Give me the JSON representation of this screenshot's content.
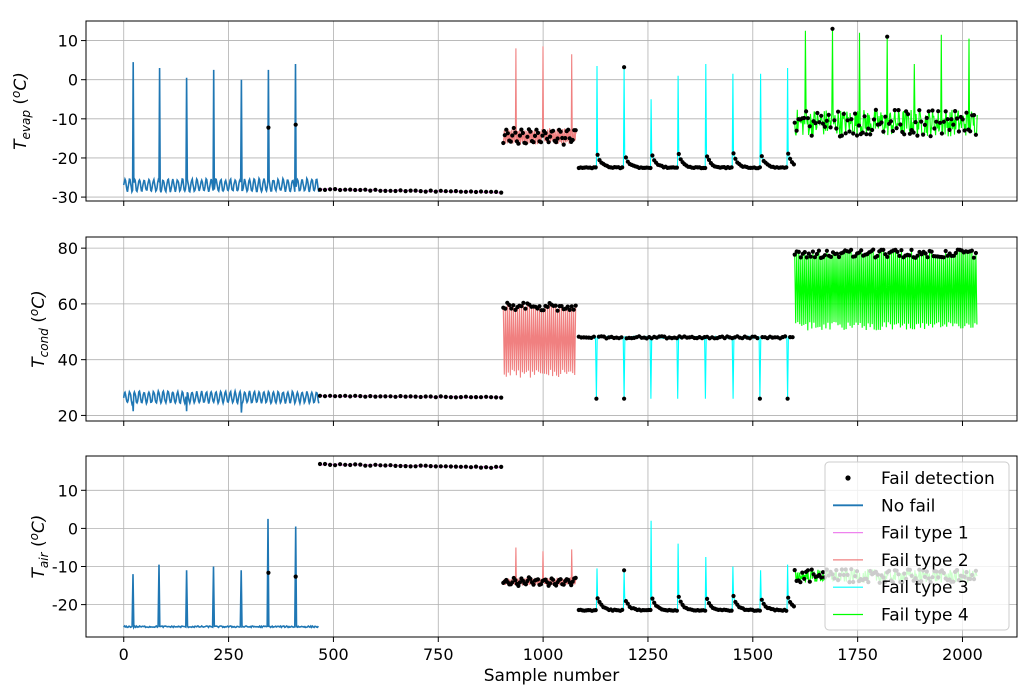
{
  "chart_data": [
    {
      "type": "line",
      "ylabel_main": "T",
      "ylabel_sub": "evap",
      "ylabel_unit_pre": " (",
      "ylabel_unit_sup": "o",
      "ylabel_unit_post": "C)",
      "xlim": [
        -90,
        2130
      ],
      "ylim": [
        -31,
        15
      ],
      "xticks": [
        0,
        250,
        500,
        750,
        1000,
        1250,
        1500,
        1750,
        2000
      ],
      "yticks": [
        -30,
        -20,
        -10,
        0,
        10
      ],
      "grid": true,
      "segments": [
        {
          "series": "No fail",
          "range": [
            0,
            465
          ],
          "pattern": "oscillate",
          "base": -27,
          "amp": 1.5,
          "spikes": [
            {
              "x": 22,
              "y": 4.5
            },
            {
              "x": 85,
              "y": 3
            },
            {
              "x": 150,
              "y": 0.5
            },
            {
              "x": 215,
              "y": 2.5
            },
            {
              "x": 280,
              "y": 0
            },
            {
              "x": 345,
              "y": 2.5
            },
            {
              "x": 410,
              "y": 4
            }
          ]
        },
        {
          "series": "Fail type 1",
          "range": [
            468,
            905
          ],
          "pattern": "flat",
          "start": -28,
          "end": -28.8
        },
        {
          "series": "Fail type 2",
          "range": [
            905,
            1080
          ],
          "pattern": "dense",
          "base": -14.5,
          "amp": 1.8,
          "spikes": [
            {
              "x": 935,
              "y": 8
            },
            {
              "x": 1000,
              "y": 8.5
            },
            {
              "x": 1068,
              "y": 6.5
            }
          ]
        },
        {
          "series": "Fail type 3",
          "range": [
            1085,
            1600
          ],
          "pattern": "decay",
          "base": -22.5,
          "period": 66,
          "spikes": [
            {
              "x": 1128,
              "y": 3.5
            },
            {
              "x": 1193,
              "y": 3.2
            },
            {
              "x": 1258,
              "y": -5
            },
            {
              "x": 1322,
              "y": 1
            },
            {
              "x": 1388,
              "y": 4
            },
            {
              "x": 1453,
              "y": 1.5
            },
            {
              "x": 1518,
              "y": 1.5
            },
            {
              "x": 1583,
              "y": 3
            }
          ]
        },
        {
          "series": "Fail type 4",
          "range": [
            1600,
            2035
          ],
          "pattern": "noisy",
          "base": -11,
          "amp": 3.5,
          "spikes": [
            {
              "x": 1625,
              "y": 12.5
            },
            {
              "x": 1690,
              "y": 13
            },
            {
              "x": 1755,
              "y": 12
            },
            {
              "x": 1820,
              "y": 11
            },
            {
              "x": 1885,
              "y": 4
            },
            {
              "x": 1950,
              "y": 11.5
            },
            {
              "x": 2015,
              "y": 10.5
            }
          ]
        }
      ]
    },
    {
      "type": "line",
      "ylabel_main": "T",
      "ylabel_sub": "cond",
      "ylabel_unit_pre": " (",
      "ylabel_unit_sup": "o",
      "ylabel_unit_post": "C)",
      "xlim": [
        -90,
        2130
      ],
      "ylim": [
        18,
        84
      ],
      "xticks": [
        0,
        250,
        500,
        750,
        1000,
        1250,
        1500,
        1750,
        2000
      ],
      "yticks": [
        20,
        40,
        60,
        80
      ],
      "grid": true,
      "segments": [
        {
          "series": "No fail",
          "range": [
            0,
            465
          ],
          "pattern": "oscillate",
          "base": 26.5,
          "amp": 2,
          "dips": [
            {
              "x": 22,
              "y": 21.5
            },
            {
              "x": 150,
              "y": 21.5
            },
            {
              "x": 280,
              "y": 21
            }
          ]
        },
        {
          "series": "Fail type 1",
          "range": [
            468,
            905
          ],
          "pattern": "flat",
          "start": 27,
          "end": 26.5
        },
        {
          "series": "Fail type 2",
          "range": [
            905,
            1080
          ],
          "pattern": "square",
          "low": 35,
          "high": 59
        },
        {
          "series": "Fail type 3",
          "range": [
            1085,
            1600
          ],
          "pattern": "dipline",
          "base": 48,
          "period": 66,
          "dips": [
            {
              "x": 1128,
              "y": 26
            },
            {
              "x": 1193,
              "y": 26
            },
            {
              "x": 1258,
              "y": 26
            },
            {
              "x": 1322,
              "y": 26
            },
            {
              "x": 1388,
              "y": 26
            },
            {
              "x": 1453,
              "y": 26
            },
            {
              "x": 1518,
              "y": 26
            },
            {
              "x": 1583,
              "y": 26
            }
          ]
        },
        {
          "series": "Fail type 4",
          "range": [
            1600,
            2035
          ],
          "pattern": "square",
          "low": 52,
          "high": 78
        }
      ]
    },
    {
      "type": "line",
      "ylabel_main": "T",
      "ylabel_sub": "air",
      "ylabel_unit_pre": " (",
      "ylabel_unit_sup": "o",
      "ylabel_unit_post": "C)",
      "xlabel": "Sample number",
      "xlim": [
        -90,
        2130
      ],
      "ylim": [
        -28.5,
        19
      ],
      "xticks": [
        0,
        250,
        500,
        750,
        1000,
        1250,
        1500,
        1750,
        2000
      ],
      "yticks": [
        -20,
        -10,
        0,
        10
      ],
      "grid": true,
      "segments": [
        {
          "series": "No fail",
          "range": [
            0,
            465
          ],
          "pattern": "flat-noise",
          "base": -25.8,
          "amp": 0.4,
          "spikes": [
            {
              "x": 22,
              "y": -12
            },
            {
              "x": 85,
              "y": -9.5
            },
            {
              "x": 150,
              "y": -11
            },
            {
              "x": 215,
              "y": -10
            },
            {
              "x": 280,
              "y": -11
            },
            {
              "x": 345,
              "y": 2.5
            },
            {
              "x": 410,
              "y": 0.5
            }
          ]
        },
        {
          "series": "Fail type 1",
          "range": [
            468,
            905
          ],
          "pattern": "flat",
          "start": 16.8,
          "end": 16
        },
        {
          "series": "Fail type 2",
          "range": [
            905,
            1080
          ],
          "pattern": "dense",
          "base": -14,
          "amp": 0.8,
          "spikes": [
            {
              "x": 935,
              "y": -5
            },
            {
              "x": 1000,
              "y": -6
            },
            {
              "x": 1068,
              "y": -5.5
            }
          ]
        },
        {
          "series": "Fail type 3",
          "range": [
            1085,
            1600
          ],
          "pattern": "decay",
          "base": -21.5,
          "period": 66,
          "spikes": [
            {
              "x": 1128,
              "y": -10.5
            },
            {
              "x": 1193,
              "y": -11
            },
            {
              "x": 1258,
              "y": 2
            },
            {
              "x": 1322,
              "y": -4
            },
            {
              "x": 1388,
              "y": -7.5
            },
            {
              "x": 1453,
              "y": -10
            },
            {
              "x": 1518,
              "y": -11
            },
            {
              "x": 1583,
              "y": -9.5
            }
          ]
        },
        {
          "series": "Fail type 4",
          "range": [
            1600,
            2035
          ],
          "pattern": "noisy",
          "base": -12.5,
          "amp": 1.8,
          "spikes": []
        }
      ]
    }
  ],
  "series_colors": {
    "No fail": "#1f77b4",
    "Fail type 1": "#ee82ee",
    "Fail type 2": "#f08080",
    "Fail type 3": "#00ffff",
    "Fail type 4": "#00ff00"
  },
  "marker_color": "#000000",
  "legend": {
    "placement": "lower-right of bottom panel",
    "entries": [
      "Fail detection",
      "No fail",
      "Fail type 1",
      "Fail type 2",
      "Fail type 3",
      "Fail type 4"
    ]
  }
}
